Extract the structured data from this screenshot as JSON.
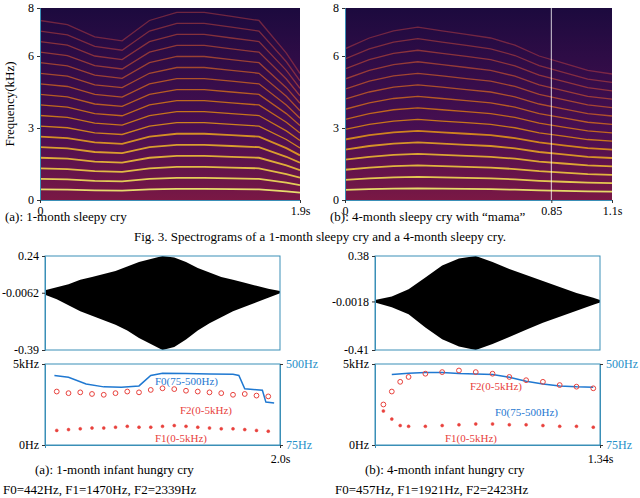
{
  "figure_caption": "Fig. 3. Spectrograms of a 1-month sleepy cry and a 4-month sleepy cry.",
  "chart_data": [
    {
      "type": "spectrogram",
      "caption": "(a): 1-month sleepy cry",
      "ylabel": "Frequency(kHz)",
      "xlim": [
        0,
        1.9
      ],
      "xticks": [
        0,
        {
          "value": 1.9,
          "label": "1.9s"
        }
      ],
      "ylim": [
        0,
        8
      ],
      "yticks": [
        0,
        3,
        6,
        8
      ],
      "x": [
        0,
        0.2,
        0.4,
        0.6,
        0.8,
        1.0,
        1.2,
        1.4,
        1.6,
        1.8,
        1.9
      ],
      "values": [
        0.44,
        0.43,
        0.4,
        0.39,
        0.44,
        0.46,
        0.46,
        0.45,
        0.44,
        0.36,
        0.31
      ],
      "harmonics": 17
    },
    {
      "type": "spectrogram",
      "caption": "(b): 4-month sleepy cry with “mama”",
      "xlim": [
        0,
        1.1
      ],
      "xticks": [
        0,
        0.85,
        {
          "value": 1.1,
          "label": "1.1s"
        }
      ],
      "ylim": [
        0,
        8
      ],
      "yticks": [
        0,
        3,
        6,
        8
      ],
      "x": [
        0,
        0.1,
        0.2,
        0.3,
        0.4,
        0.5,
        0.6,
        0.7,
        0.8,
        0.9,
        1.0,
        1.1
      ],
      "values": [
        0.42,
        0.45,
        0.47,
        0.48,
        0.47,
        0.46,
        0.45,
        0.43,
        0.4,
        0.38,
        0.36,
        0.35
      ],
      "harmonics": 15
    },
    {
      "type": "waveform",
      "caption": "(a): 1-month infant hungry cry",
      "summary": "F0=442Hz, F1=1470Hz, F2=2339Hz",
      "xlim": [
        0,
        2.0
      ],
      "xticks": [
        {
          "value": 2.0,
          "label": "2.0s"
        }
      ],
      "waveform": {
        "color": "#000000",
        "ylim": [
          -0.39,
          0.24
        ],
        "yticks": [
          0.24,
          -0.0062,
          -0.39
        ],
        "x": [
          0,
          0.1,
          0.2,
          0.3,
          0.4,
          0.5,
          0.6,
          0.7,
          0.8,
          0.9,
          1.0,
          1.1,
          1.2,
          1.3,
          1.4,
          1.5,
          1.6,
          1.7,
          1.8,
          1.9,
          2.0
        ],
        "upper": [
          0.01,
          0.03,
          0.05,
          0.08,
          0.1,
          0.12,
          0.14,
          0.17,
          0.2,
          0.22,
          0.24,
          0.23,
          0.2,
          0.16,
          0.13,
          0.1,
          0.08,
          0.06,
          0.04,
          0.02,
          0.005
        ],
        "lower": [
          -0.02,
          -0.05,
          -0.09,
          -0.13,
          -0.16,
          -0.19,
          -0.22,
          -0.26,
          -0.31,
          -0.35,
          -0.39,
          -0.37,
          -0.32,
          -0.26,
          -0.21,
          -0.17,
          -0.13,
          -0.1,
          -0.07,
          -0.04,
          -0.01
        ]
      },
      "ylim": [
        0,
        5000
      ],
      "yticks": [
        {
          "value": 5000,
          "label": "5kHz"
        },
        {
          "value": 0,
          "label": "0Hz"
        }
      ],
      "y2lim": [
        75,
        500
      ],
      "y2ticks": [
        {
          "value": 500,
          "label": "500Hz"
        },
        {
          "value": 75,
          "label": "75Hz"
        }
      ],
      "series": [
        {
          "name": "F0(75-500Hz)",
          "color": "#1f78d1",
          "axis": "y2",
          "type": "line",
          "line_style": "solid",
          "x": [
            0.08,
            0.2,
            0.35,
            0.5,
            0.65,
            0.8,
            0.9,
            1.0,
            1.2,
            1.4,
            1.6,
            1.65,
            1.7,
            1.8,
            1.85,
            1.88,
            1.95
          ],
          "values": [
            440,
            430,
            395,
            380,
            378,
            385,
            440,
            452,
            450,
            448,
            446,
            440,
            370,
            365,
            362,
            300,
            296
          ]
        },
        {
          "name": "F1(0-5kHz)",
          "color": "#e8413c",
          "type": "scatter",
          "marker": "dot",
          "x": [
            0.1,
            0.2,
            0.3,
            0.4,
            0.5,
            0.6,
            0.7,
            0.8,
            0.9,
            1.0,
            1.1,
            1.2,
            1.3,
            1.4,
            1.5,
            1.6,
            1.7,
            1.8,
            1.9
          ],
          "values": [
            900,
            950,
            1000,
            1050,
            1050,
            1100,
            1150,
            1100,
            1100,
            1150,
            1200,
            1150,
            1100,
            1050,
            1000,
            1000,
            950,
            900,
            850
          ]
        },
        {
          "name": "F2(0-5kHz)",
          "color": "#e8413c",
          "type": "scatter",
          "marker": "circle",
          "x": [
            0.1,
            0.2,
            0.3,
            0.4,
            0.5,
            0.6,
            0.7,
            0.8,
            0.9,
            1.0,
            1.1,
            1.2,
            1.3,
            1.4,
            1.5,
            1.6,
            1.7,
            1.8,
            1.9
          ],
          "values": [
            3300,
            3200,
            3250,
            3150,
            3100,
            3200,
            3300,
            3250,
            3400,
            3500,
            3450,
            3350,
            3300,
            3250,
            3200,
            3100,
            3150,
            3050,
            3000
          ]
        }
      ]
    },
    {
      "type": "waveform",
      "caption": "(b): 4-month infant hungry cry",
      "summary": "F0=457Hz, F1=1921Hz, F2=2423Hz",
      "xlim": [
        0,
        1.34
      ],
      "xticks": [
        {
          "value": 1.34,
          "label": "1.34s"
        }
      ],
      "waveform": {
        "color": "#000000",
        "ylim": [
          -0.41,
          0.38
        ],
        "yticks": [
          0.38,
          -0.0018,
          -0.41
        ],
        "x": [
          0,
          0.1,
          0.2,
          0.3,
          0.4,
          0.5,
          0.6,
          0.7,
          0.8,
          0.9,
          1.0,
          1.1,
          1.2,
          1.3,
          1.34
        ],
        "upper": [
          0.01,
          0.04,
          0.1,
          0.2,
          0.3,
          0.36,
          0.38,
          0.33,
          0.27,
          0.22,
          0.17,
          0.12,
          0.07,
          0.03,
          0.01
        ],
        "lower": [
          -0.01,
          -0.05,
          -0.11,
          -0.22,
          -0.32,
          -0.38,
          -0.41,
          -0.36,
          -0.3,
          -0.24,
          -0.18,
          -0.13,
          -0.08,
          -0.03,
          -0.01
        ]
      },
      "ylim": [
        0,
        5000
      ],
      "yticks": [
        {
          "value": 5000,
          "label": "5kHz"
        },
        {
          "value": 0,
          "label": "0Hz"
        }
      ],
      "y2lim": [
        75,
        500
      ],
      "y2ticks": [
        {
          "value": 500,
          "label": "500Hz"
        },
        {
          "value": 75,
          "label": "75Hz"
        }
      ],
      "series": [
        {
          "name": "F0(75-500Hz)",
          "color": "#1f78d1",
          "axis": "y2",
          "type": "line",
          "line_style": "solid",
          "x": [
            0.1,
            0.2,
            0.3,
            0.4,
            0.5,
            0.6,
            0.7,
            0.8,
            0.9,
            1.0,
            1.1,
            1.2,
            1.3
          ],
          "values": [
            445,
            452,
            455,
            455,
            450,
            448,
            445,
            430,
            410,
            395,
            385,
            380,
            378
          ]
        },
        {
          "name": "F1(0-5kHz)",
          "color": "#e8413c",
          "type": "scatter",
          "marker": "dot",
          "x": [
            0.05,
            0.1,
            0.15,
            0.2,
            0.3,
            0.4,
            0.5,
            0.6,
            0.7,
            0.8,
            0.9,
            1.0,
            1.1,
            1.2,
            1.3
          ],
          "values": [
            2100,
            1600,
            1200,
            1150,
            1150,
            1200,
            1250,
            1300,
            1300,
            1250,
            1250,
            1200,
            1150,
            1150,
            1100
          ]
        },
        {
          "name": "F2(0-5kHz)",
          "color": "#e8413c",
          "type": "scatter",
          "marker": "circle",
          "x": [
            0.05,
            0.1,
            0.15,
            0.2,
            0.3,
            0.4,
            0.5,
            0.6,
            0.7,
            0.8,
            0.9,
            1.0,
            1.1,
            1.2,
            1.3
          ],
          "values": [
            2500,
            3300,
            3900,
            4200,
            4400,
            4500,
            4600,
            4500,
            4400,
            4200,
            4000,
            3900,
            3700,
            3600,
            3500
          ]
        }
      ]
    }
  ]
}
